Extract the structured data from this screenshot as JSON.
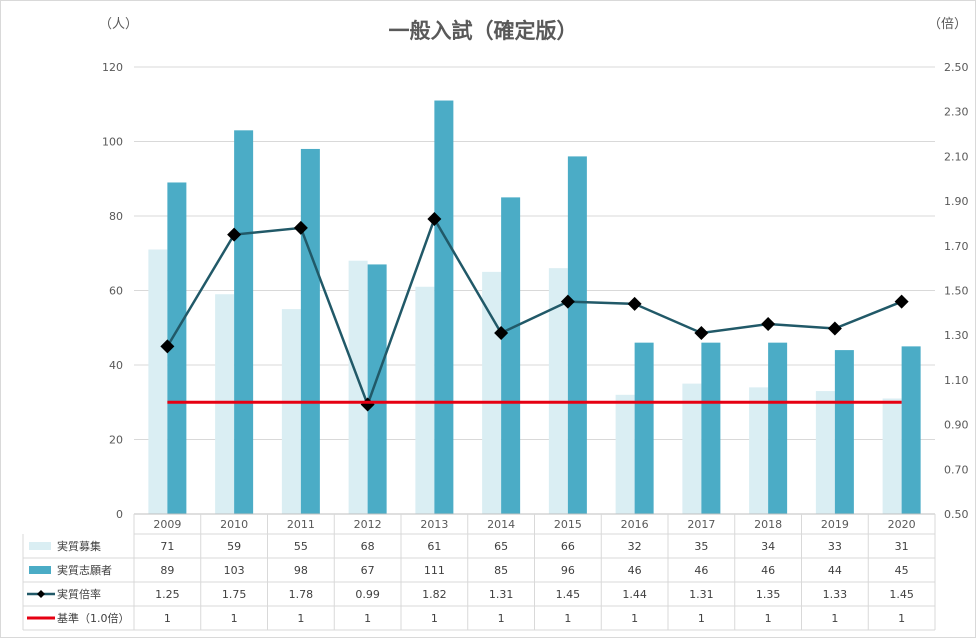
{
  "chart_data": {
    "type": "bar",
    "title": "一般入試（確定版）",
    "left_unit": "（人）",
    "right_unit": "（倍）",
    "categories": [
      "2009",
      "2010",
      "2011",
      "2012",
      "2013",
      "2014",
      "2015",
      "2016",
      "2017",
      "2018",
      "2019",
      "2020"
    ],
    "ylim_left": [
      0,
      120
    ],
    "yticks_left": [
      "0",
      "20",
      "40",
      "60",
      "80",
      "100",
      "120"
    ],
    "ylim_right": [
      0.5,
      2.5
    ],
    "yticks_right": [
      "0.50",
      "0.70",
      "0.90",
      "1.10",
      "1.30",
      "1.50",
      "1.70",
      "1.90",
      "2.10",
      "2.30",
      "2.50"
    ],
    "grid": true,
    "legend_placement": "data-table",
    "series": [
      {
        "name": "実質募集",
        "kind": "bar",
        "axis": "left",
        "color": "#daeef3",
        "values": [
          71,
          59,
          55,
          68,
          61,
          65,
          66,
          32,
          35,
          34,
          33,
          31
        ],
        "labels": [
          "71",
          "59",
          "55",
          "68",
          "61",
          "65",
          "66",
          "32",
          "35",
          "34",
          "33",
          "31"
        ]
      },
      {
        "name": "実質志願者",
        "kind": "bar",
        "axis": "left",
        "color": "#4bacc6",
        "values": [
          89,
          103,
          98,
          67,
          111,
          85,
          96,
          46,
          46,
          46,
          44,
          45
        ],
        "labels": [
          "89",
          "103",
          "98",
          "67",
          "111",
          "85",
          "96",
          "46",
          "46",
          "46",
          "44",
          "45"
        ]
      },
      {
        "name": "実質倍率",
        "kind": "line",
        "axis": "right",
        "color": "#215968",
        "values": [
          1.25,
          1.75,
          1.78,
          0.99,
          1.82,
          1.31,
          1.45,
          1.44,
          1.31,
          1.35,
          1.33,
          1.45
        ],
        "labels": [
          "1.25",
          "1.75",
          "1.78",
          "0.99",
          "1.82",
          "1.31",
          "1.45",
          "1.44",
          "1.31",
          "1.35",
          "1.33",
          "1.45"
        ]
      },
      {
        "name": "基準（1.0倍）",
        "kind": "line",
        "axis": "right",
        "color": "#e60012",
        "values": [
          1,
          1,
          1,
          1,
          1,
          1,
          1,
          1,
          1,
          1,
          1,
          1
        ],
        "labels": [
          "1",
          "1",
          "1",
          "1",
          "1",
          "1",
          "1",
          "1",
          "1",
          "1",
          "1",
          "1"
        ]
      }
    ]
  }
}
